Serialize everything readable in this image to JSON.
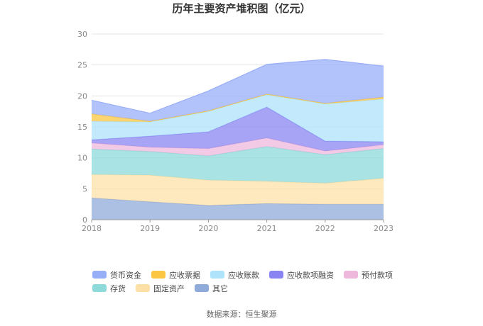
{
  "chart_data": {
    "type": "area",
    "title": "历年主要资产堆积图（亿元）",
    "categories": [
      "2018",
      "2019",
      "2020",
      "2021",
      "2022",
      "2023"
    ],
    "ylim": [
      0,
      30
    ],
    "yticks": [
      0,
      5,
      10,
      15,
      20,
      25,
      30
    ],
    "stacked": true,
    "series": [
      {
        "name": "其它",
        "color": "#8fabd9",
        "values": [
          3.5,
          2.9,
          2.3,
          2.6,
          2.5,
          2.5
        ]
      },
      {
        "name": "固定资产",
        "color": "#fde0a8",
        "values": [
          3.8,
          4.3,
          4.1,
          3.6,
          3.4,
          4.2
        ]
      },
      {
        "name": "存货",
        "color": "#8ed9d9",
        "values": [
          4.1,
          3.8,
          3.9,
          5.6,
          4.6,
          4.8
        ]
      },
      {
        "name": "预付款项",
        "color": "#edb8dc",
        "values": [
          1.0,
          0.7,
          1.2,
          1.4,
          0.6,
          0.6
        ]
      },
      {
        "name": "应收款项融资",
        "color": "#8a84f2",
        "values": [
          0.5,
          1.8,
          2.7,
          5.0,
          1.6,
          0.5
        ]
      },
      {
        "name": "应收账款",
        "color": "#aee3fb",
        "values": [
          3.0,
          2.3,
          3.3,
          2.0,
          6.0,
          6.9
        ]
      },
      {
        "name": "应收票据",
        "color": "#fbc743",
        "values": [
          1.2,
          0.1,
          0.1,
          0.1,
          0.1,
          0.3
        ]
      },
      {
        "name": "货币资金",
        "color": "#98aef8",
        "values": [
          2.2,
          1.3,
          3.2,
          4.8,
          7.1,
          5.0
        ]
      }
    ],
    "legend_order": [
      "货币资金",
      "应收票据",
      "应收账款",
      "应收款项融资",
      "预付款项",
      "存货",
      "固定资产",
      "其它"
    ],
    "legend_position": "bottom"
  },
  "source": "数据来源：恒生聚源"
}
